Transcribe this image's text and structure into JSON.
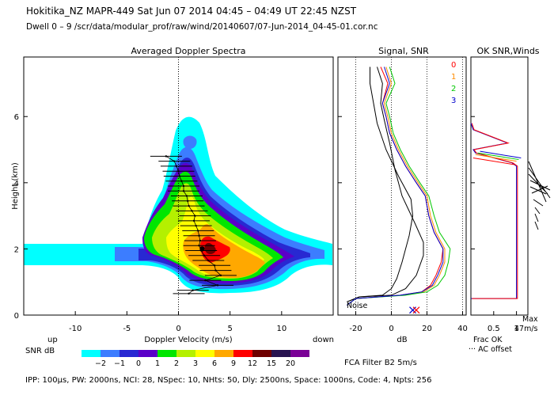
{
  "header": {
    "title": "Hokitika_NZ   MAPR-449   Sat Jun 07 2014 04:45 – 04:49 UT 22:45 NZST",
    "subtitle": "Dwell  0 –  9   /scr/data/modular_prof/raw/wind/20140607/07-Jun-2014_04-45-01.cor.nc"
  },
  "footer": {
    "params": "IPP: 100µs,  PW: 2000ns,  NCI:  28,  NSpec: 10, NHts: 50,  Dly: 2500ns,  Space: 1000ns,  Code: 4,  Npts: 256"
  },
  "legend": {
    "snr_label": "SNR dB",
    "ticks": [
      "−2",
      "−1",
      "0",
      "1",
      "2",
      "3",
      "6",
      "9",
      "12",
      "15",
      "20"
    ],
    "colors": [
      "#00ffff",
      "#3c7dff",
      "#2828d2",
      "#5a00c8",
      "#00e600",
      "#b4f000",
      "#ffff00",
      "#ffa800",
      "#ff0000",
      "#6e0000",
      "#281450",
      "#7a0096"
    ]
  },
  "colors": {
    "series0": "#ff0000",
    "series1": "#ff8c00",
    "series2": "#00c800",
    "series3": "#0000cd"
  },
  "chart_data": [
    {
      "type": "heatmap",
      "title": "Averaged Doppler Spectra",
      "xlabel": "Doppler Velocity (m/s)",
      "ylabel": "Height (km)",
      "xlim": [
        -15,
        15
      ],
      "ylim": [
        0,
        7.8
      ],
      "xticks": [
        -10,
        -5,
        0,
        5,
        10
      ],
      "yticks": [
        0,
        2,
        4,
        6
      ],
      "left_note": "up",
      "right_note": "down",
      "profile_points": [
        {
          "v": 1.0,
          "h": 0.65
        },
        {
          "v": 1.4,
          "h": 0.75
        },
        {
          "v": 3.8,
          "h": 0.9
        },
        {
          "v": 2.6,
          "h": 1.05
        },
        {
          "v": 4.1,
          "h": 1.2
        },
        {
          "v": 3.6,
          "h": 1.35
        },
        {
          "v": 3.5,
          "h": 1.5
        },
        {
          "v": 2.9,
          "h": 1.65
        },
        {
          "v": 2.5,
          "h": 1.8
        },
        {
          "v": 2.2,
          "h": 1.95
        },
        {
          "v": 2.0,
          "h": 2.1
        },
        {
          "v": 2.1,
          "h": 2.25
        },
        {
          "v": 2.0,
          "h": 2.4
        },
        {
          "v": 1.9,
          "h": 2.55
        },
        {
          "v": 1.7,
          "h": 2.7
        },
        {
          "v": 1.5,
          "h": 2.85
        },
        {
          "v": 1.6,
          "h": 3.0
        },
        {
          "v": 1.3,
          "h": 3.15
        },
        {
          "v": 1.0,
          "h": 3.3
        },
        {
          "v": 0.9,
          "h": 3.45
        },
        {
          "v": 0.8,
          "h": 3.6
        },
        {
          "v": 0.5,
          "h": 3.75
        },
        {
          "v": 0.5,
          "h": 3.9
        },
        {
          "v": 0.3,
          "h": 4.05
        },
        {
          "v": 0.1,
          "h": 4.2
        },
        {
          "v": 0.0,
          "h": 4.35
        },
        {
          "v": -0.2,
          "h": 4.5
        },
        {
          "v": -0.4,
          "h": 4.65
        },
        {
          "v": -1.2,
          "h": 4.8
        }
      ],
      "peak_point": {
        "v": 2.3,
        "h": 2.0
      }
    },
    {
      "type": "line",
      "title": "Signal, SNR",
      "xlabel": "dB",
      "xlim": [
        -30,
        42
      ],
      "ylim": [
        0,
        7.8
      ],
      "xticks": [
        -20,
        0,
        20,
        40
      ],
      "noise_label": "Noise",
      "series": [
        {
          "name": "0",
          "points": [
            [
              -25,
              0.3
            ],
            [
              -20,
              0.5
            ],
            [
              5,
              0.6
            ],
            [
              17,
              0.7
            ],
            [
              22,
              0.9
            ],
            [
              25,
              1.2
            ],
            [
              28,
              1.6
            ],
            [
              29,
              2.0
            ],
            [
              24,
              2.5
            ],
            [
              21,
              3.0
            ],
            [
              19,
              3.6
            ],
            [
              14,
              4.0
            ],
            [
              8,
              4.5
            ],
            [
              3,
              5.0
            ],
            [
              -1,
              5.5
            ],
            [
              -3,
              6.0
            ],
            [
              -5,
              6.4
            ],
            [
              -2,
              7.0
            ],
            [
              -6,
              7.5
            ]
          ]
        },
        {
          "name": "1",
          "points": [
            [
              -25,
              0.3
            ],
            [
              -20,
              0.5
            ],
            [
              6,
              0.6
            ],
            [
              18,
              0.7
            ],
            [
              24,
              0.9
            ],
            [
              27,
              1.2
            ],
            [
              30,
              1.6
            ],
            [
              30,
              2.0
            ],
            [
              25,
              2.5
            ],
            [
              22,
              3.0
            ],
            [
              20,
              3.6
            ],
            [
              15,
              4.0
            ],
            [
              9,
              4.5
            ],
            [
              4,
              5.0
            ],
            [
              0,
              5.5
            ],
            [
              -2,
              6.0
            ],
            [
              -4,
              6.4
            ],
            [
              0,
              7.0
            ],
            [
              -3,
              7.5
            ]
          ]
        },
        {
          "name": "2",
          "points": [
            [
              -25,
              0.3
            ],
            [
              -20,
              0.5
            ],
            [
              8,
              0.6
            ],
            [
              20,
              0.7
            ],
            [
              26,
              0.9
            ],
            [
              30,
              1.2
            ],
            [
              32,
              1.6
            ],
            [
              33,
              2.0
            ],
            [
              27,
              2.5
            ],
            [
              24,
              3.0
            ],
            [
              21,
              3.6
            ],
            [
              16,
              4.0
            ],
            [
              10,
              4.5
            ],
            [
              5,
              5.0
            ],
            [
              1,
              5.5
            ],
            [
              -1,
              6.0
            ],
            [
              -3,
              6.4
            ],
            [
              2,
              7.0
            ],
            [
              -1,
              7.5
            ]
          ]
        },
        {
          "name": "3",
          "points": [
            [
              -25,
              0.3
            ],
            [
              -20,
              0.5
            ],
            [
              5,
              0.6
            ],
            [
              17,
              0.7
            ],
            [
              23,
              0.9
            ],
            [
              26,
              1.2
            ],
            [
              29,
              1.6
            ],
            [
              29,
              2.0
            ],
            [
              24,
              2.5
            ],
            [
              21,
              3.0
            ],
            [
              19,
              3.6
            ],
            [
              14,
              4.0
            ],
            [
              8,
              4.5
            ],
            [
              3,
              5.0
            ],
            [
              -1,
              5.5
            ],
            [
              -3,
              6.0
            ],
            [
              -5,
              6.4
            ],
            [
              -1,
              7.0
            ],
            [
              -4,
              7.5
            ]
          ]
        }
      ],
      "noise_series": [
        {
          "name": "noise-left",
          "points": [
            [
              -25,
              0.4
            ],
            [
              -18,
              0.55
            ],
            [
              -5,
              0.6
            ],
            [
              0,
              0.8
            ],
            [
              3,
              1.1
            ],
            [
              6,
              1.6
            ],
            [
              10,
              2.4
            ],
            [
              12,
              3.0
            ],
            [
              11,
              3.5
            ],
            [
              4,
              4.2
            ],
            [
              -3,
              5.0
            ],
            [
              -8,
              5.8
            ],
            [
              -10,
              6.4
            ],
            [
              -12,
              7.0
            ],
            [
              -12,
              7.5
            ]
          ]
        },
        {
          "name": "noise-right",
          "points": [
            [
              -25,
              0.4
            ],
            [
              -18,
              0.55
            ],
            [
              0,
              0.6
            ],
            [
              8,
              0.8
            ],
            [
              14,
              1.2
            ],
            [
              18,
              1.8
            ],
            [
              18,
              2.2
            ],
            [
              13,
              2.8
            ],
            [
              6,
              3.6
            ],
            [
              2,
              4.4
            ],
            [
              -1,
              5.2
            ],
            [
              -4,
              5.9
            ],
            [
              -6,
              6.4
            ],
            [
              -5,
              7.0
            ],
            [
              -8,
              7.5
            ]
          ]
        }
      ],
      "crosses": [
        {
          "x": 12,
          "y": 0.15
        },
        {
          "x": 14,
          "y": 0.15
        }
      ]
    },
    {
      "type": "line",
      "title": "OK SNR,Winds",
      "xlabel": "Frac OK",
      "xlim": [
        0,
        1.25
      ],
      "ylim": [
        0,
        7.8
      ],
      "xticks": [
        "0.5",
        "1"
      ],
      "legend": [
        "0",
        "1",
        "2",
        "3"
      ],
      "ac_offset_label": "··· AC offset",
      "max_label": "Max",
      "max_value": "47m/s",
      "series": [
        {
          "name": "frac-ok",
          "points": [
            [
              0,
              0.5
            ],
            [
              1,
              0.5
            ],
            [
              1,
              4.5
            ],
            [
              0.9,
              4.6
            ],
            [
              0.1,
              4.9
            ],
            [
              0.05,
              5.0
            ],
            [
              0.8,
              5.2
            ],
            [
              0.05,
              5.6
            ],
            [
              0,
              5.8
            ]
          ]
        }
      ]
    }
  ],
  "fca_filter": "FCA Filter B2   5m/s"
}
